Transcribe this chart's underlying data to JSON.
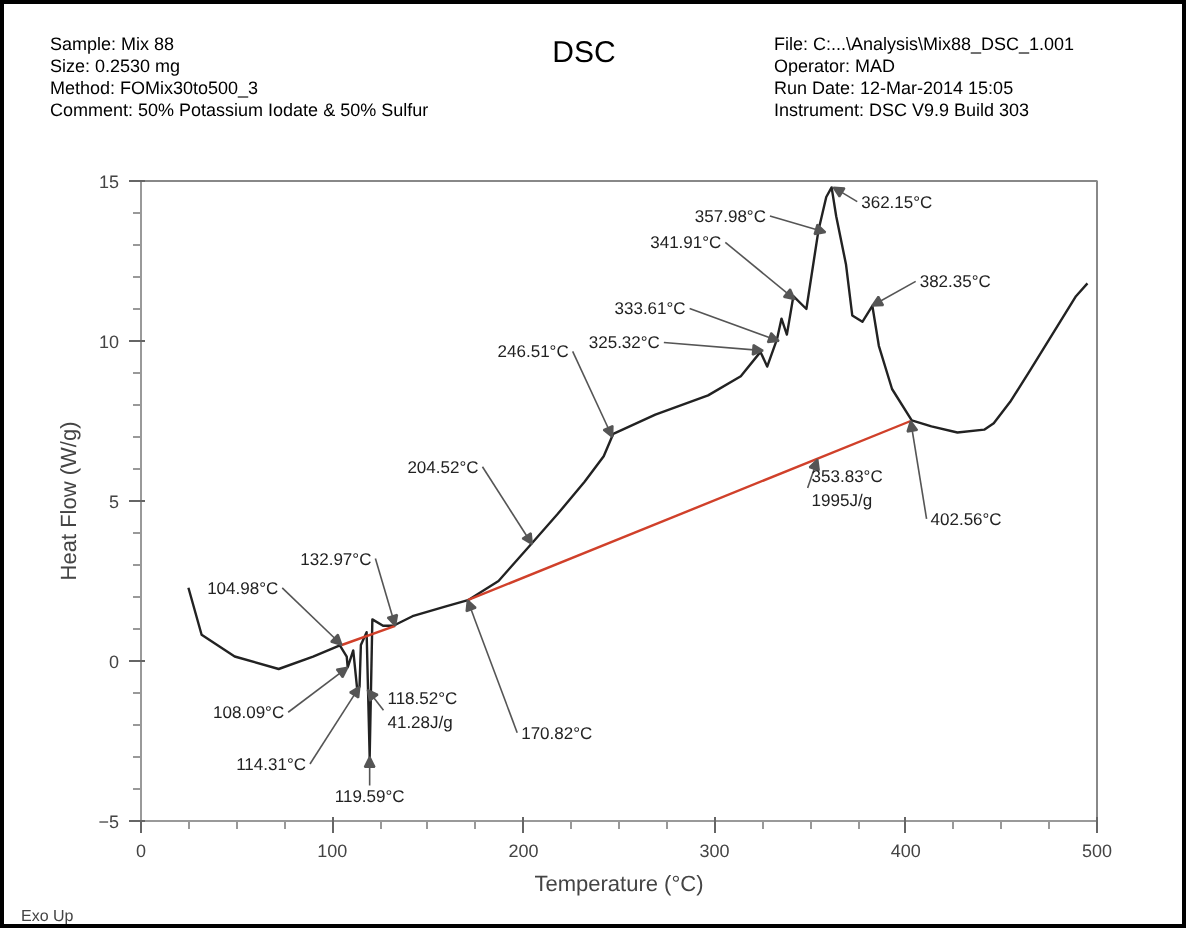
{
  "chart_data": {
    "type": "line",
    "title": "DSC",
    "xlabel": "Temperature (°C)",
    "ylabel": "Heat Flow (W/g)",
    "xlim": [
      0,
      500
    ],
    "xticks": [
      0,
      100,
      200,
      300,
      400,
      500
    ],
    "ylim": [
      -5,
      15
    ],
    "yticks": [
      -5,
      0,
      5,
      10,
      15
    ],
    "grid": false,
    "series": [
      {
        "color": "#222222",
        "x": [
          24.8,
          31.7,
          49,
          72,
          90,
          104,
          107.6,
          108.1,
          111,
          113,
          114.3,
          115,
          118,
          119.6,
          121,
          126.6,
          132,
          142,
          159,
          171,
          187,
          204,
          218,
          232,
          242,
          247,
          269,
          296.6,
          313.7,
          324,
          327.5,
          332.6,
          335,
          337.8,
          341.2,
          348,
          354.3,
          358.4,
          361.2,
          363.6,
          368.7,
          372,
          377.3,
          382.5,
          385.9,
          392.8,
          403.1,
          413.4,
          427,
          441,
          446,
          454.6,
          465,
          489,
          495
        ],
        "values": [
          2.29,
          0.82,
          0.14,
          -0.25,
          0.14,
          0.49,
          0.14,
          -0.2,
          0.33,
          -0.84,
          -0.8,
          0.5,
          0.9,
          -3.0,
          1.3,
          1.1,
          1.1,
          1.4,
          1.7,
          1.9,
          2.5,
          3.65,
          4.6,
          5.6,
          6.4,
          7.1,
          7.7,
          8.3,
          8.9,
          9.66,
          9.2,
          10.05,
          10.7,
          10.2,
          11.4,
          11.0,
          13.45,
          14.5,
          14.8,
          13.9,
          12.4,
          10.8,
          10.6,
          11.1,
          9.85,
          8.5,
          7.52,
          7.33,
          7.14,
          7.23,
          7.43,
          8.1,
          9.08,
          11.4,
          11.8
        ]
      },
      {
        "color": "#d0402a",
        "x": [
          104.98,
          132.97
        ],
        "values": [
          0.5,
          1.1
        ]
      },
      {
        "color": "#d0402a",
        "x": [
          170.82,
          402.56
        ],
        "values": [
          1.9,
          7.5
        ]
      }
    ],
    "annotations": [
      "Sample: Mix 88",
      "Size:  0.2530 mg",
      "Method: FOMix30to500_3",
      "Comment: 50% Potassium Iodate & 50% Sulfur",
      "File: C:...\\Analysis\\Mix88_DSC_1.001",
      "Operator: MAD",
      "Run Date: 12-Mar-2014 15:05",
      "Instrument: DSC V9.9 Build 303",
      "Exo Up",
      {
        "text": "104.98°C",
        "x": 104.98,
        "y": 0.5
      },
      {
        "text": "132.97°C",
        "x": 132.97,
        "y": 1.1
      },
      {
        "text": "108.09°C",
        "x": 108.09,
        "y": -0.2
      },
      {
        "text": "114.31°C",
        "x": 114.31,
        "y": -0.8
      },
      {
        "text": "118.52°C\n41.28J/g",
        "x": 118.52,
        "y": -0.9
      },
      {
        "text": "119.59°C",
        "x": 119.59,
        "y": -3.0
      },
      {
        "text": "170.82°C",
        "x": 170.82,
        "y": 1.9
      },
      {
        "text": "204.52°C",
        "x": 204.52,
        "y": 3.65
      },
      {
        "text": "246.51°C",
        "x": 246.51,
        "y": 7.0
      },
      {
        "text": "325.32°C",
        "x": 325.32,
        "y": 9.7
      },
      {
        "text": "333.61°C",
        "x": 333.61,
        "y": 10.0
      },
      {
        "text": "341.91°C",
        "x": 341.91,
        "y": 11.3
      },
      {
        "text": "357.98°C",
        "x": 357.98,
        "y": 13.4
      },
      {
        "text": "362.15°C",
        "x": 362.15,
        "y": 14.8
      },
      {
        "text": "382.35°C",
        "x": 382.35,
        "y": 11.1
      },
      {
        "text": "353.83°C\n1995J/g",
        "x": 353.83,
        "y": 6.3
      },
      {
        "text": "402.56°C",
        "x": 402.56,
        "y": 7.5
      }
    ]
  }
}
